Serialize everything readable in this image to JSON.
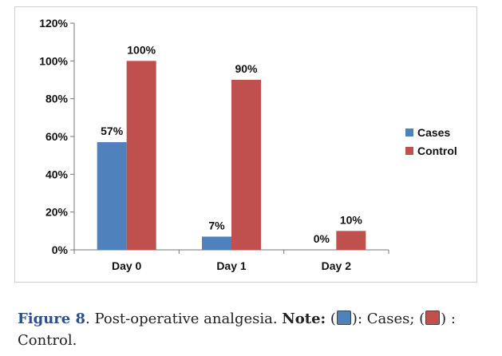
{
  "chart_data": {
    "type": "bar",
    "categories": [
      "Day 0",
      "Day 1",
      "Day 2"
    ],
    "series": [
      {
        "name": "Cases",
        "values": [
          57,
          7,
          0
        ],
        "labels": [
          "57%",
          "7%",
          "0%"
        ]
      },
      {
        "name": "Control",
        "values": [
          100,
          90,
          10
        ],
        "labels": [
          "100%",
          "90%",
          "10%"
        ]
      }
    ],
    "yticks": [
      "0%",
      "20%",
      "40%",
      "60%",
      "80%",
      "100%",
      "120%"
    ],
    "ylim": [
      0,
      120
    ],
    "legend_position": "right",
    "grid": false,
    "colors": {
      "Cases": "#4f81bd",
      "Control": "#c0504d"
    }
  },
  "caption": {
    "figure_label": "Figure 8",
    "text": ". Post-operative analgesia. ",
    "note_label": "Note:",
    "open1": " (",
    "cases_text": "): Cases; (",
    "control_text": ") : Control."
  }
}
